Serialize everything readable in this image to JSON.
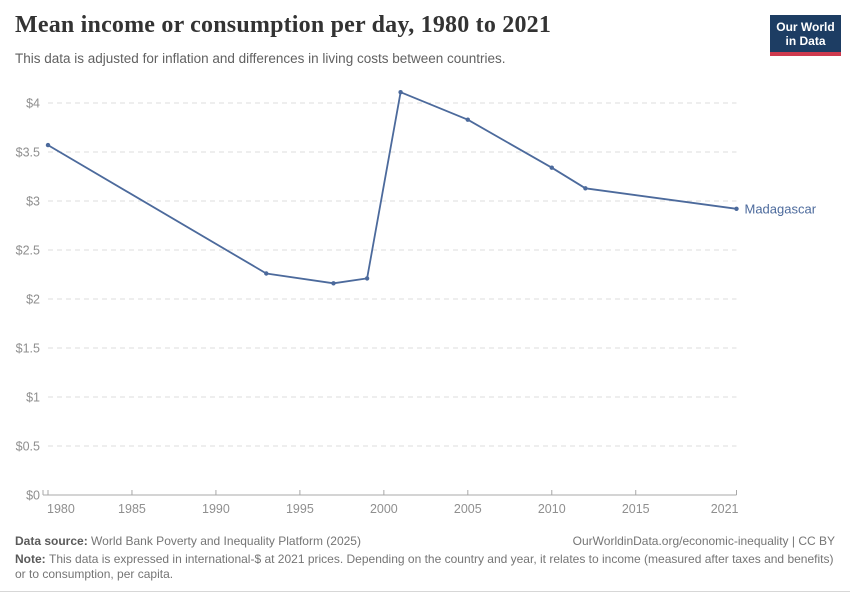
{
  "header": {
    "logo": {
      "line1": "Our World",
      "line2": "in Data"
    },
    "logo_colors": {
      "background": "#1d3d63",
      "bar": "#cf3a4e"
    }
  },
  "chart_data": {
    "type": "line",
    "title": "Mean income or consumption per day, 1980 to 2021",
    "subtitle": "This data is adjusted for inflation and differences in living costs between countries.",
    "xlabel": "",
    "ylabel": "",
    "xlim": [
      1980,
      2021
    ],
    "ylim": [
      0,
      4.2
    ],
    "grid": "horizontal-dashed",
    "legend_position": "end-of-line-label",
    "x_ticks": [
      "1980",
      "1985",
      "1990",
      "1995",
      "2000",
      "2005",
      "2010",
      "2015",
      "2021"
    ],
    "y_ticks": [
      {
        "value": 0,
        "label": "$0"
      },
      {
        "value": 0.5,
        "label": "$0.5"
      },
      {
        "value": 1,
        "label": "$1"
      },
      {
        "value": 1.5,
        "label": "$1.5"
      },
      {
        "value": 2,
        "label": "$2"
      },
      {
        "value": 2.5,
        "label": "$2.5"
      },
      {
        "value": 3,
        "label": "$3"
      },
      {
        "value": 3.5,
        "label": "$3.5"
      },
      {
        "value": 4,
        "label": "$4"
      }
    ],
    "series": [
      {
        "name": "Madagascar",
        "color": "#4c6a9c",
        "points": [
          [
            1980,
            3.57
          ],
          [
            1993,
            2.26
          ],
          [
            1997,
            2.16
          ],
          [
            1999,
            2.21
          ],
          [
            2001,
            4.11
          ],
          [
            2005,
            3.83
          ],
          [
            2010,
            3.34
          ],
          [
            2012,
            3.13
          ],
          [
            2021,
            2.92
          ]
        ]
      }
    ]
  },
  "footer": {
    "datasource_label": "Data source:",
    "datasource_text": "World Bank Poverty and Inequality Platform (2025)",
    "credit": "OurWorldinData.org/economic-inequality | CC BY",
    "note_label": "Note:",
    "note_text": "This data is expressed in international-$ at 2021 prices. Depending on the country and year, it relates to income (measured after taxes and benefits) or to consumption, per capita."
  }
}
